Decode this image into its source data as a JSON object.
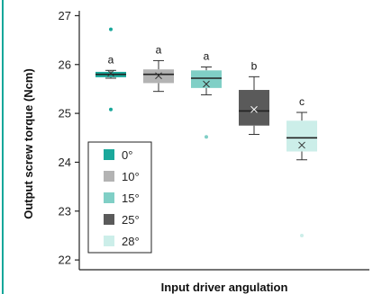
{
  "chart_data": {
    "type": "box",
    "xlabel": "Input driver angulation",
    "ylabel": "Output screw torque (Ncm)",
    "ylim": [
      21.8,
      27.1
    ],
    "yticks": [
      22,
      23,
      24,
      25,
      26,
      27
    ],
    "grid": false,
    "legend_position": "bottom-left",
    "series": [
      {
        "name": "0°",
        "color": "#1aa89b",
        "min": 25.72,
        "q1": 25.74,
        "median": 25.8,
        "q3": 25.85,
        "max": 25.88,
        "mean": 25.82,
        "outliers": [
          26.72,
          25.08
        ],
        "letter": "a"
      },
      {
        "name": "10°",
        "color": "#b3b3b3",
        "min": 25.45,
        "q1": 25.62,
        "median": 25.8,
        "q3": 25.9,
        "max": 26.08,
        "mean": 25.77,
        "outliers": [],
        "letter": "a"
      },
      {
        "name": "15°",
        "color": "#80cfc6",
        "min": 25.38,
        "q1": 25.52,
        "median": 25.72,
        "q3": 25.88,
        "max": 25.95,
        "mean": 25.6,
        "outliers": [
          24.52
        ],
        "letter": "a"
      },
      {
        "name": "25°",
        "color": "#5a5a5a",
        "min": 24.57,
        "q1": 24.75,
        "median": 25.05,
        "q3": 25.48,
        "max": 25.75,
        "mean": 25.08,
        "outliers": [],
        "letter": "b"
      },
      {
        "name": "28°",
        "color": "#cceee9",
        "min": 24.05,
        "q1": 24.22,
        "median": 24.5,
        "q3": 24.85,
        "max": 25.02,
        "mean": 24.35,
        "outliers": [
          22.5
        ],
        "letter": "c"
      }
    ]
  }
}
